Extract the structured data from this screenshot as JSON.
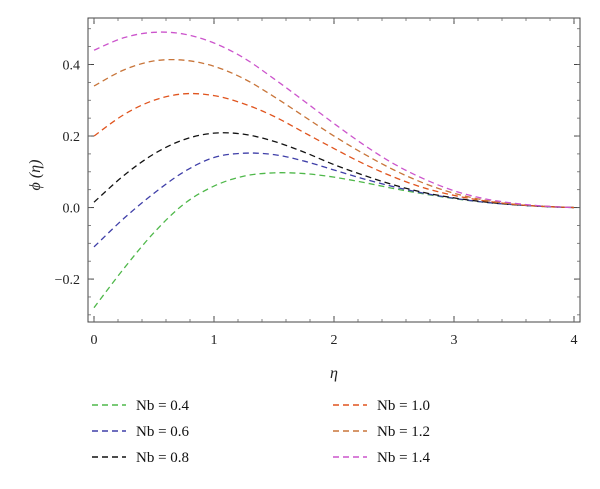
{
  "chart_data": {
    "type": "line",
    "title": "",
    "xlabel": "η",
    "ylabel": "ϕ (η)",
    "xlim": [
      -0.05,
      4.05
    ],
    "ylim": [
      -0.32,
      0.53
    ],
    "xticks": [
      0,
      1,
      2,
      3,
      4
    ],
    "xtick_labels": [
      "0",
      "1",
      "2",
      "3",
      "4"
    ],
    "yticks": [
      -0.2,
      0.0,
      0.2,
      0.4
    ],
    "ytick_labels": [
      "−0.2",
      "0.0",
      "0.2",
      "0.4"
    ],
    "grid": false,
    "legend_position": "bottom",
    "line_style": "dashed",
    "series": [
      {
        "name": "Nb = 0.4",
        "color": "#4fb84a",
        "x": [
          0,
          0.25,
          0.5,
          0.75,
          1.0,
          1.25,
          1.5,
          1.75,
          2.0,
          2.25,
          2.5,
          2.75,
          3.0,
          3.25,
          3.5,
          3.75,
          4.0
        ],
        "y": [
          -0.28,
          -0.17,
          -0.07,
          0.01,
          0.06,
          0.088,
          0.097,
          0.095,
          0.085,
          0.07,
          0.053,
          0.038,
          0.025,
          0.015,
          0.008,
          0.003,
          0.0
        ]
      },
      {
        "name": "Nb = 0.6",
        "color": "#3f3fa8",
        "x": [
          0,
          0.25,
          0.5,
          0.75,
          1.0,
          1.25,
          1.5,
          1.75,
          2.0,
          2.25,
          2.5,
          2.75,
          3.0,
          3.25,
          3.5,
          3.75,
          4.0
        ],
        "y": [
          -0.11,
          -0.03,
          0.04,
          0.1,
          0.14,
          0.152,
          0.148,
          0.13,
          0.105,
          0.08,
          0.058,
          0.04,
          0.026,
          0.015,
          0.008,
          0.003,
          0.0
        ]
      },
      {
        "name": "Nb = 0.8",
        "color": "#111111",
        "x": [
          0,
          0.25,
          0.5,
          0.75,
          1.0,
          1.25,
          1.5,
          1.75,
          2.0,
          2.25,
          2.5,
          2.75,
          3.0,
          3.25,
          3.5,
          3.75,
          4.0
        ],
        "y": [
          0.015,
          0.09,
          0.15,
          0.19,
          0.208,
          0.205,
          0.185,
          0.155,
          0.12,
          0.09,
          0.063,
          0.042,
          0.027,
          0.016,
          0.008,
          0.003,
          0.0
        ]
      },
      {
        "name": "Nb = 1.0",
        "color": "#e0541e",
        "x": [
          0,
          0.25,
          0.5,
          0.75,
          1.0,
          1.25,
          1.5,
          1.75,
          2.0,
          2.25,
          2.5,
          2.75,
          3.0,
          3.25,
          3.5,
          3.75,
          4.0
        ],
        "y": [
          0.2,
          0.26,
          0.3,
          0.318,
          0.313,
          0.29,
          0.255,
          0.21,
          0.165,
          0.122,
          0.085,
          0.055,
          0.034,
          0.019,
          0.009,
          0.003,
          0.0
        ]
      },
      {
        "name": "Nb = 1.2",
        "color": "#c8753a",
        "x": [
          0,
          0.25,
          0.5,
          0.75,
          1.0,
          1.25,
          1.5,
          1.75,
          2.0,
          2.25,
          2.5,
          2.75,
          3.0,
          3.25,
          3.5,
          3.75,
          4.0
        ],
        "y": [
          0.34,
          0.385,
          0.41,
          0.412,
          0.395,
          0.36,
          0.31,
          0.255,
          0.2,
          0.15,
          0.105,
          0.068,
          0.04,
          0.021,
          0.01,
          0.004,
          0.0
        ]
      },
      {
        "name": "Nb = 1.4",
        "color": "#cc55cc",
        "x": [
          0,
          0.25,
          0.5,
          0.75,
          1.0,
          1.25,
          1.5,
          1.75,
          2.0,
          2.25,
          2.5,
          2.75,
          3.0,
          3.25,
          3.5,
          3.75,
          4.0
        ],
        "y": [
          0.44,
          0.475,
          0.49,
          0.485,
          0.46,
          0.418,
          0.36,
          0.298,
          0.235,
          0.175,
          0.122,
          0.08,
          0.047,
          0.025,
          0.012,
          0.004,
          0.0
        ]
      }
    ]
  }
}
